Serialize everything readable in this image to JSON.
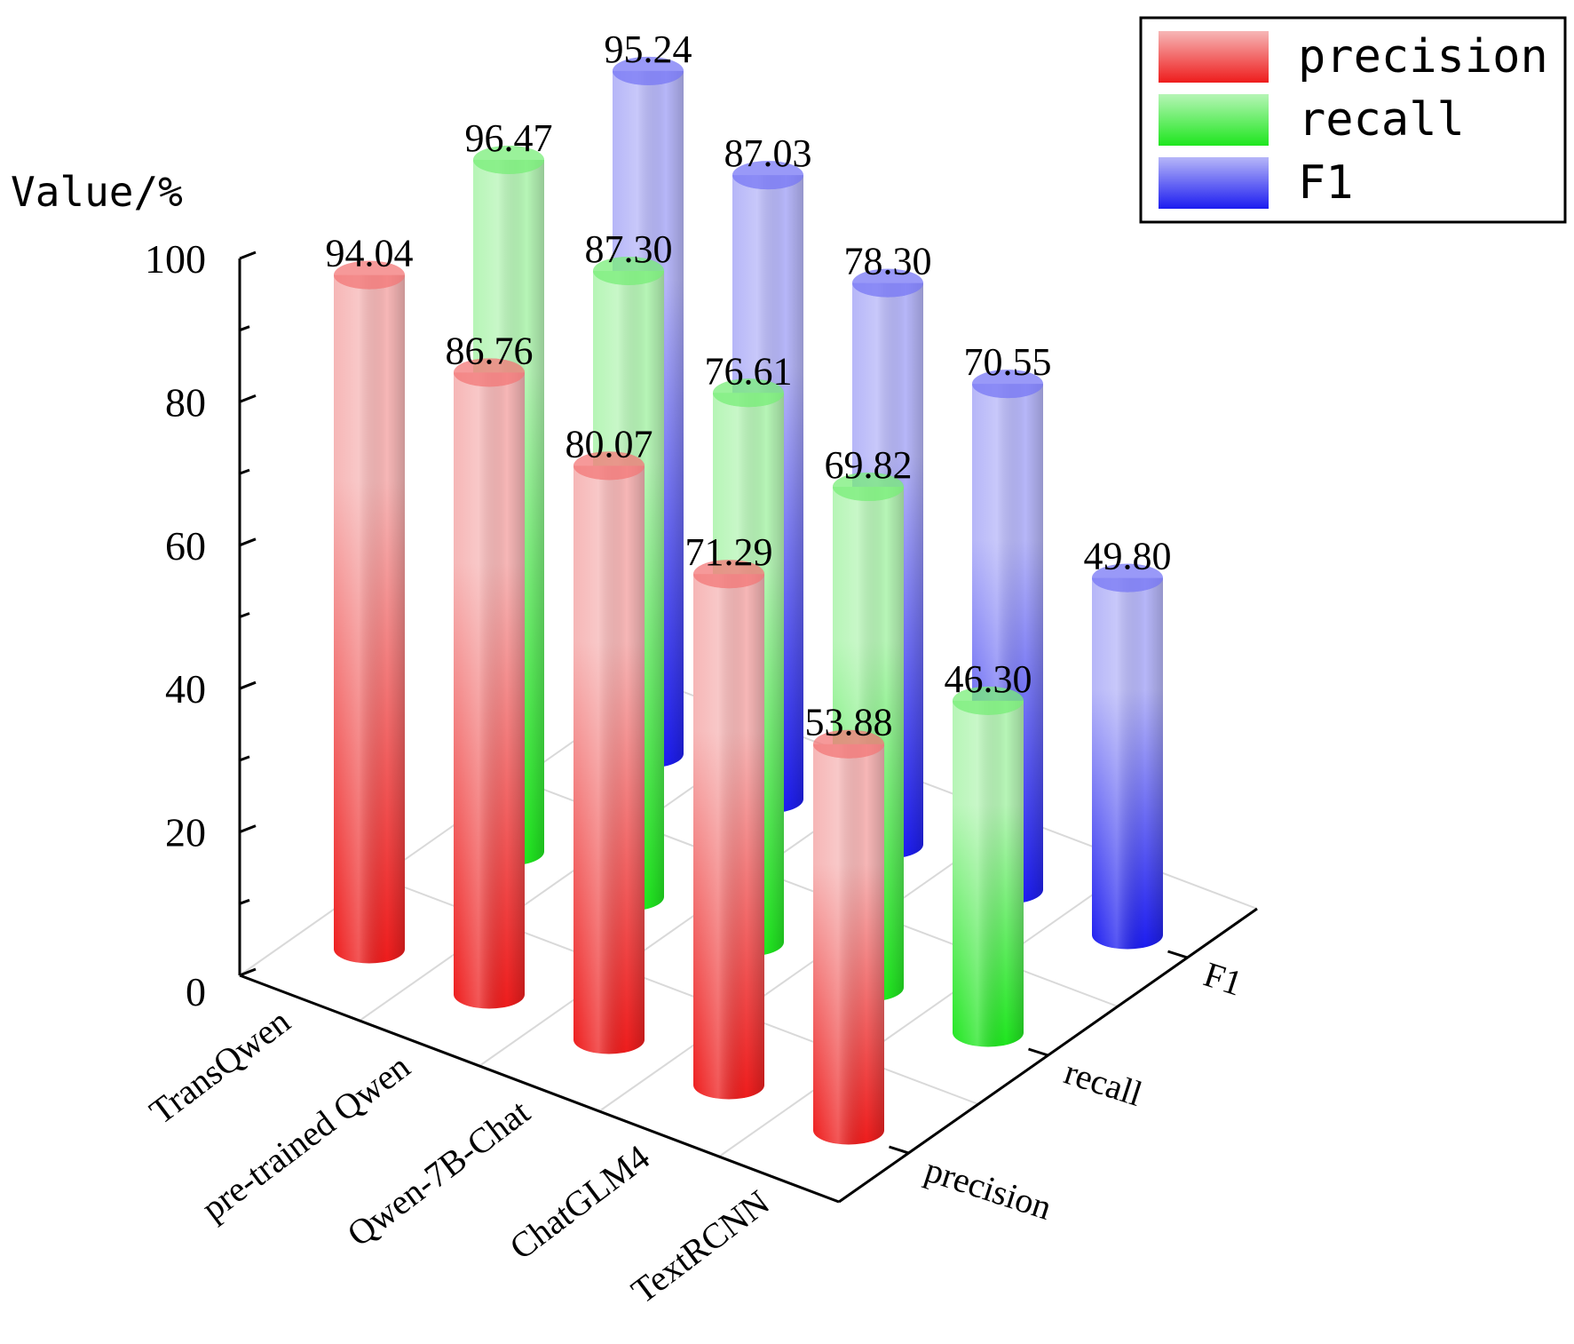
{
  "chart_data": {
    "type": "bar",
    "title": "",
    "ylabel": "Value/%",
    "ylim": [
      0,
      100
    ],
    "yticks": [
      "0",
      "20",
      "40",
      "60",
      "80",
      "100"
    ],
    "categories": [
      "TransQwen",
      "pre-trained Qwen",
      "Qwen-7B-Chat",
      "ChatGLM4",
      "TextRCNN"
    ],
    "series": [
      {
        "name": "precision",
        "label": "precision",
        "color": "#ee1c1c",
        "light": "#f6b6b6",
        "values": [
          94.04,
          86.76,
          80.07,
          71.29,
          53.88
        ],
        "labels": [
          "94.04",
          "86.76",
          "80.07",
          "71.29",
          "53.88"
        ]
      },
      {
        "name": "recall",
        "label": "recall",
        "color": "#1ee61e",
        "light": "#b6f5b6",
        "values": [
          96.47,
          87.3,
          76.61,
          69.82,
          46.3
        ],
        "labels": [
          "96.47",
          "87.30",
          "76.61",
          "69.82",
          "46.30"
        ]
      },
      {
        "name": "F1",
        "label": "F1",
        "color": "#1c1cf0",
        "light": "#b6b6f8",
        "values": [
          95.24,
          87.03,
          78.3,
          70.55,
          49.8
        ],
        "labels": [
          "95.24",
          "87.03",
          "78.30",
          "70.55",
          "49.80"
        ]
      }
    ],
    "legend": {
      "position": "top-right",
      "entries": [
        "precision",
        "recall",
        "F1"
      ]
    }
  }
}
